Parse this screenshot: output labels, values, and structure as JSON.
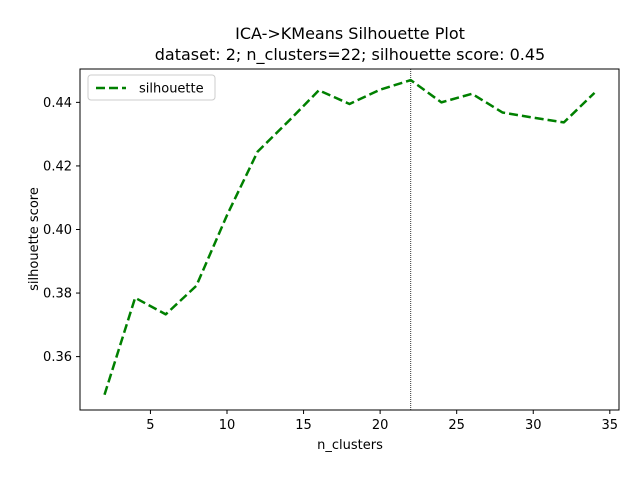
{
  "chart_data": {
    "type": "line",
    "title": "ICA->KMeans Silhouette Plot",
    "subtitle": "dataset: 2; n_clusters=22; silhouette score: 0.45",
    "xlabel": "n_clusters",
    "ylabel": "silhouette score",
    "xlim": [
      0.4,
      35.6
    ],
    "ylim": [
      0.3432,
      0.4505
    ],
    "xticks": [
      5,
      10,
      15,
      20,
      25,
      30,
      35
    ],
    "yticks": [
      0.36,
      0.38,
      0.4,
      0.42,
      0.44
    ],
    "xtick_labels": [
      "5",
      "10",
      "15",
      "20",
      "25",
      "30",
      "35"
    ],
    "ytick_labels": [
      "0.36",
      "0.38",
      "0.40",
      "0.42",
      "0.44"
    ],
    "grid": false,
    "legend_position": "top-left",
    "vline_x": 22,
    "series": [
      {
        "name": "silhouette",
        "color": "#008000",
        "linestyle": "dashed",
        "x": [
          2,
          4,
          6,
          8,
          10,
          12,
          14,
          16,
          18,
          20,
          22,
          24,
          26,
          28,
          30,
          32,
          34
        ],
        "values": [
          0.348,
          0.3785,
          0.3733,
          0.3823,
          0.4045,
          0.4245,
          0.434,
          0.4438,
          0.4395,
          0.444,
          0.447,
          0.44,
          0.4427,
          0.4368,
          0.4352,
          0.4337,
          0.443
        ]
      }
    ]
  }
}
